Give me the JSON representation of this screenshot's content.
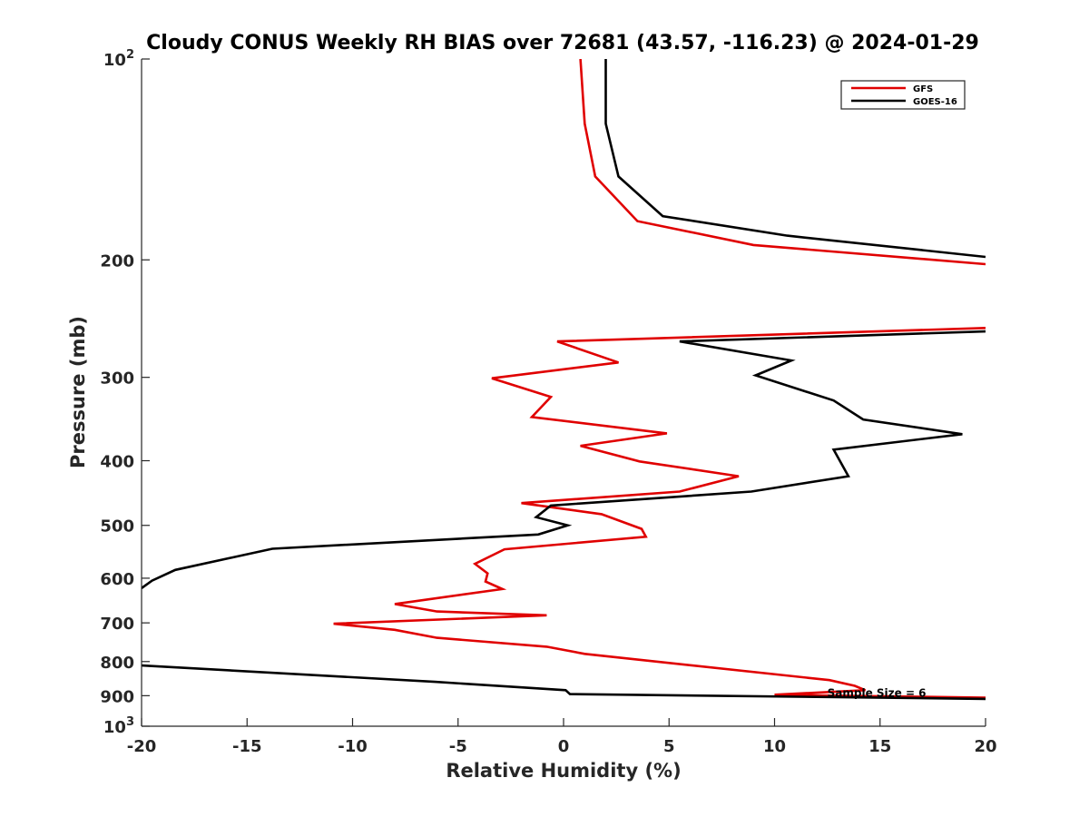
{
  "chart_data": {
    "type": "line",
    "title": "Cloudy CONUS Weekly RH BIAS over 72681 (43.57, -116.23) @ 2024-01-29",
    "xlabel": "Relative Humidity (%)",
    "ylabel": "Pressure (mb)",
    "xlim": [
      -20,
      20
    ],
    "ylim": [
      100,
      1000
    ],
    "yscale": "log",
    "y_reversed": true,
    "grid": false,
    "legend_position": "top-right",
    "x_ticks": [
      {
        "value": -20,
        "label": "-20"
      },
      {
        "value": -15,
        "label": "-15"
      },
      {
        "value": -10,
        "label": "-10"
      },
      {
        "value": -5,
        "label": "-5"
      },
      {
        "value": 0,
        "label": "0"
      },
      {
        "value": 5,
        "label": "5"
      },
      {
        "value": 10,
        "label": "10"
      },
      {
        "value": 15,
        "label": "15"
      },
      {
        "value": 20,
        "label": "20"
      }
    ],
    "y_ticks": [
      {
        "value": 100,
        "base": "10",
        "sup": "2"
      },
      {
        "value": 200,
        "base": "200",
        "sup": ""
      },
      {
        "value": 300,
        "base": "300",
        "sup": ""
      },
      {
        "value": 400,
        "base": "400",
        "sup": ""
      },
      {
        "value": 500,
        "base": "500",
        "sup": ""
      },
      {
        "value": 600,
        "base": "600",
        "sup": ""
      },
      {
        "value": 700,
        "base": "700",
        "sup": ""
      },
      {
        "value": 800,
        "base": "800",
        "sup": ""
      },
      {
        "value": 900,
        "base": "900",
        "sup": ""
      },
      {
        "value": 1000,
        "base": "10",
        "sup": "3"
      }
    ],
    "series": [
      {
        "name": "GFS",
        "color": "#e00000",
        "points": [
          [
            0.8,
            100
          ],
          [
            1.0,
            125
          ],
          [
            1.5,
            150
          ],
          [
            3.5,
            175
          ],
          [
            9.0,
            190
          ],
          [
            20,
            203
          ],
          [
            null,
            null
          ],
          [
            20,
            253
          ],
          [
            -0.3,
            265
          ],
          [
            2.6,
            285
          ],
          [
            -3.4,
            301
          ],
          [
            -0.6,
            321
          ],
          [
            -1.5,
            344
          ],
          [
            4.9,
            364
          ],
          [
            0.8,
            380
          ],
          [
            3.6,
            401
          ],
          [
            8.3,
            422
          ],
          [
            5.5,
            445
          ],
          [
            -2.0,
            463
          ],
          [
            1.8,
            481
          ],
          [
            3.7,
            506
          ],
          [
            3.9,
            520
          ],
          [
            -2.8,
            543
          ],
          [
            -4.2,
            571
          ],
          [
            -3.6,
            590
          ],
          [
            -3.7,
            607
          ],
          [
            -2.9,
            623
          ],
          [
            -8.0,
            656
          ],
          [
            -6.0,
            673
          ],
          [
            -0.8,
            682
          ],
          [
            -10.9,
            702
          ],
          [
            -8.0,
            717
          ],
          [
            -6.0,
            737
          ],
          [
            -0.8,
            760
          ],
          [
            1.0,
            779
          ],
          [
            12.6,
            853
          ],
          [
            13.8,
            870
          ],
          [
            14.3,
            883
          ],
          [
            10.0,
            897
          ],
          [
            13.0,
            900
          ],
          [
            20,
            906
          ]
        ]
      },
      {
        "name": "GOES-16",
        "color": "#000000",
        "points": [
          [
            2.0,
            100
          ],
          [
            2.0,
            125
          ],
          [
            2.6,
            150
          ],
          [
            4.7,
            172
          ],
          [
            10.6,
            184
          ],
          [
            20,
            198
          ],
          [
            null,
            null
          ],
          [
            20,
            256
          ],
          [
            5.5,
            265
          ],
          [
            10.8,
            283
          ],
          [
            9.1,
            298
          ],
          [
            12.8,
            325
          ],
          [
            14.2,
            347
          ],
          [
            18.9,
            365
          ],
          [
            12.8,
            385
          ],
          [
            13.5,
            422
          ],
          [
            8.9,
            445
          ],
          [
            -0.6,
            467
          ],
          [
            -1.3,
            486
          ],
          [
            0.2,
            500
          ],
          [
            -1.2,
            516
          ],
          [
            -13.8,
            542
          ],
          [
            -18.4,
            583
          ],
          [
            -19.5,
            605
          ],
          [
            -20,
            621
          ],
          [
            null,
            null
          ],
          [
            -20,
            811
          ],
          [
            -6.1,
            858
          ],
          [
            0.1,
            883
          ],
          [
            0.3,
            895
          ],
          [
            20,
            910
          ]
        ]
      }
    ],
    "annotations": [
      {
        "text": "Sample Size = 6",
        "x": 12.5,
        "y": 892
      }
    ]
  }
}
